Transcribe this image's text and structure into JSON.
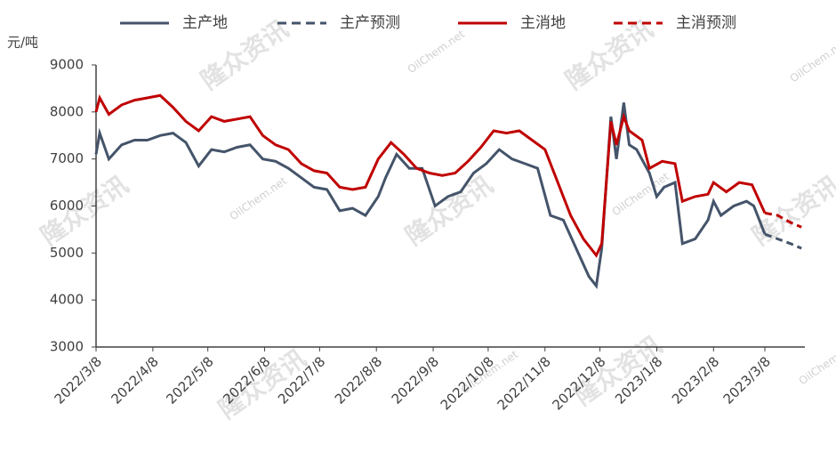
{
  "chart_data": {
    "type": "line",
    "y_label": "元/吨",
    "watermarks": [
      "隆众资讯",
      "OilChem.net"
    ],
    "ylim": [
      3000,
      9000
    ],
    "yticks": [
      3000,
      4000,
      5000,
      6000,
      7000,
      8000,
      9000
    ],
    "xticks": [
      "2022/3/8",
      "2022/4/8",
      "2022/5/8",
      "2022/6/8",
      "2022/7/8",
      "2022/8/8",
      "2022/9/8",
      "2022/10/8",
      "2022/11/8",
      "2022/12/8",
      "2023/1/8",
      "2023/2/8",
      "2023/3/8"
    ],
    "series": [
      {
        "name": "主产地",
        "color": "#44546a",
        "dash": false,
        "x": [
          "2022/3/8",
          "2022/3/10",
          "2022/3/15",
          "2022/3/22",
          "2022/3/29",
          "2022/4/5",
          "2022/4/12",
          "2022/4/19",
          "2022/4/26",
          "2022/5/3",
          "2022/5/10",
          "2022/5/17",
          "2022/5/24",
          "2022/5/31",
          "2022/6/7",
          "2022/6/14",
          "2022/6/21",
          "2022/6/28",
          "2022/7/5",
          "2022/7/12",
          "2022/7/19",
          "2022/7/26",
          "2022/8/2",
          "2022/8/9",
          "2022/8/13",
          "2022/8/19",
          "2022/8/26",
          "2022/9/2",
          "2022/9/9",
          "2022/9/16",
          "2022/9/23",
          "2022/9/30",
          "2022/10/7",
          "2022/10/14",
          "2022/10/21",
          "2022/10/28",
          "2022/11/4",
          "2022/11/11",
          "2022/11/18",
          "2022/11/25",
          "2022/12/2",
          "2022/12/6",
          "2022/12/9",
          "2022/12/14",
          "2022/12/17",
          "2022/12/21",
          "2022/12/24",
          "2022/12/28",
          "2023/1/4",
          "2023/1/8",
          "2023/1/12",
          "2023/1/18",
          "2023/1/22",
          "2023/1/29",
          "2023/2/5",
          "2023/2/8",
          "2023/2/12",
          "2023/2/19",
          "2023/2/26",
          "2023/3/2",
          "2023/3/8"
        ],
        "values": [
          7100,
          7550,
          7000,
          7300,
          7400,
          7400,
          7500,
          7550,
          7350,
          6850,
          7200,
          7150,
          7250,
          7300,
          7000,
          6950,
          6800,
          6600,
          6400,
          6350,
          5900,
          5950,
          5800,
          6200,
          6600,
          7100,
          6800,
          6800,
          6000,
          6200,
          6300,
          6700,
          6900,
          7200,
          7000,
          6900,
          6800,
          5800,
          5700,
          5100,
          4500,
          4300,
          5100,
          7900,
          7000,
          8200,
          7300,
          7200,
          6700,
          6200,
          6400,
          6500,
          5200,
          5300,
          5700,
          6100,
          5800,
          6000,
          6100,
          6000,
          5400
        ]
      },
      {
        "name": "主产预测",
        "color": "#44546a",
        "dash": true,
        "x": [
          "2023/3/8",
          "2023/3/15",
          "2023/3/22",
          "2023/3/28"
        ],
        "values": [
          5400,
          5300,
          5200,
          5100
        ]
      },
      {
        "name": "主消地",
        "color": "#c00000",
        "dash": false,
        "x": [
          "2022/3/8",
          "2022/3/10",
          "2022/3/15",
          "2022/3/22",
          "2022/3/29",
          "2022/4/5",
          "2022/4/12",
          "2022/4/19",
          "2022/4/26",
          "2022/5/3",
          "2022/5/10",
          "2022/5/17",
          "2022/5/24",
          "2022/5/31",
          "2022/6/7",
          "2022/6/14",
          "2022/6/21",
          "2022/6/28",
          "2022/7/5",
          "2022/7/12",
          "2022/7/19",
          "2022/7/26",
          "2022/8/2",
          "2022/8/9",
          "2022/8/16",
          "2022/8/23",
          "2022/8/30",
          "2022/9/6",
          "2022/9/13",
          "2022/9/20",
          "2022/9/27",
          "2022/10/4",
          "2022/10/11",
          "2022/10/18",
          "2022/10/25",
          "2022/11/1",
          "2022/11/8",
          "2022/11/15",
          "2022/11/22",
          "2022/11/29",
          "2022/12/6",
          "2022/12/9",
          "2022/12/14",
          "2022/12/17",
          "2022/12/21",
          "2022/12/24",
          "2022/12/31",
          "2023/1/4",
          "2023/1/11",
          "2023/1/18",
          "2023/1/22",
          "2023/1/29",
          "2023/2/5",
          "2023/2/8",
          "2023/2/15",
          "2023/2/22",
          "2023/3/1",
          "2023/3/8"
        ],
        "values": [
          8000,
          8300,
          7950,
          8150,
          8250,
          8300,
          8350,
          8100,
          7800,
          7600,
          7900,
          7800,
          7850,
          7900,
          7500,
          7300,
          7200,
          6900,
          6750,
          6700,
          6400,
          6350,
          6400,
          7000,
          7350,
          7100,
          6800,
          6700,
          6650,
          6700,
          6950,
          7250,
          7600,
          7550,
          7600,
          7400,
          7200,
          6500,
          5800,
          5300,
          4950,
          5200,
          7800,
          7300,
          7900,
          7600,
          7400,
          6800,
          6950,
          6900,
          6100,
          6200,
          6250,
          6500,
          6300,
          6500,
          6450,
          5850
        ]
      },
      {
        "name": "主消预测",
        "color": "#c00000",
        "dash": true,
        "x": [
          "2023/3/8",
          "2023/3/15",
          "2023/3/22",
          "2023/3/28"
        ],
        "values": [
          5850,
          5800,
          5650,
          5550
        ]
      }
    ]
  }
}
